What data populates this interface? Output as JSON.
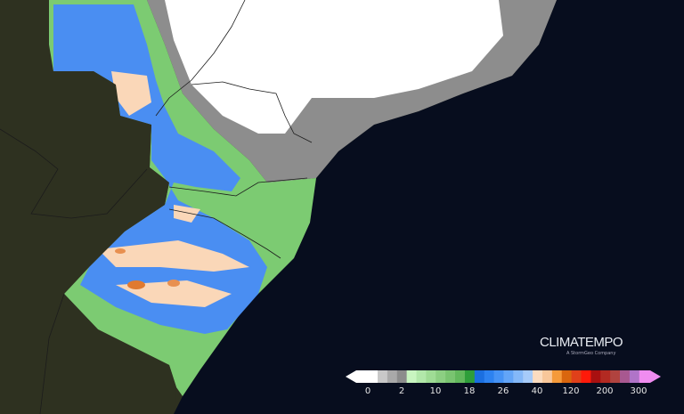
{
  "logo": {
    "brand": "CLIMATEMPO",
    "subtitle": "A StormGeo Company"
  },
  "colors": {
    "ocean": "#070d1e",
    "land": "#2e3120",
    "no_rain": "#ffffff"
  },
  "legend": {
    "labels": [
      "0",
      "2",
      "10",
      "18",
      "26",
      "40",
      "120",
      "200",
      "300"
    ],
    "segments": [
      "#ffffff",
      "#c8c8c8",
      "#a9a9a9",
      "#8c8c8c",
      "#c8f5c0",
      "#b2e8aa",
      "#9fdc95",
      "#8ccf82",
      "#79c470",
      "#62b85c",
      "#2e9e3a",
      "#1b6fe0",
      "#2d82f0",
      "#4693f5",
      "#63a5f7",
      "#84b8f8",
      "#a6cbf9",
      "#fbdcc0",
      "#f8c79a",
      "#f59a3a",
      "#d9660e",
      "#e0401a",
      "#ff1a0a",
      "#a81010",
      "#b22a22",
      "#b0433f",
      "#a85890",
      "#b074c8",
      "#f08cf0"
    ]
  }
}
